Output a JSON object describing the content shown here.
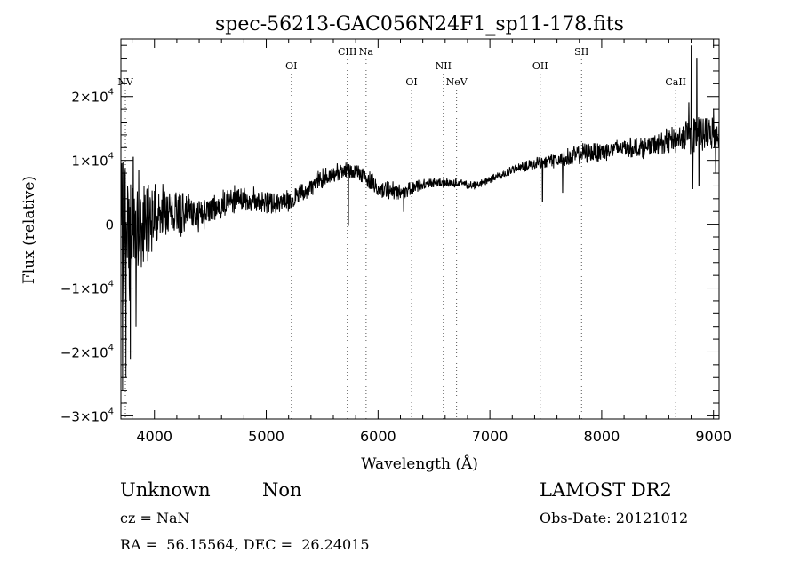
{
  "chart_data": {
    "type": "line",
    "title": "spec-56213-GAC056N24F1_sp11-178.fits",
    "xlabel": "Wavelength (Å)",
    "ylabel": "Flux (relative)",
    "xlim": [
      3700,
      9050
    ],
    "ylim": [
      -30500,
      29000
    ],
    "x_ticks": [
      {
        "value": 4000,
        "label": "4000"
      },
      {
        "value": 5000,
        "label": "5000"
      },
      {
        "value": 6000,
        "label": "6000"
      },
      {
        "value": 7000,
        "label": "7000"
      },
      {
        "value": 8000,
        "label": "8000"
      },
      {
        "value": 9000,
        "label": "9000"
      }
    ],
    "y_ticks": [
      {
        "value": -30000,
        "mant": "−3×10",
        "exp": "4"
      },
      {
        "value": -20000,
        "mant": "−2×10",
        "exp": "4"
      },
      {
        "value": -10000,
        "mant": "−1×10",
        "exp": "4"
      },
      {
        "value": 0,
        "mant": "0",
        "exp": ""
      },
      {
        "value": 10000,
        "mant": "1×10",
        "exp": "4"
      },
      {
        "value": 20000,
        "mant": "2×10",
        "exp": "4"
      }
    ],
    "lines": [
      {
        "label": "NV",
        "x": 3740,
        "level": 3
      },
      {
        "label": "OI",
        "x": 5225,
        "level": 2
      },
      {
        "label": "CIII",
        "x": 5725,
        "level": 1
      },
      {
        "label": "Na",
        "x": 5893,
        "level": 1
      },
      {
        "label": "OI",
        "x": 6300,
        "level": 3
      },
      {
        "label": "NII",
        "x": 6584,
        "level": 2
      },
      {
        "label": "NeV",
        "x": 6702,
        "level": 3
      },
      {
        "label": "OII",
        "x": 7450,
        "level": 2
      },
      {
        "label": "SII",
        "x": 7820,
        "level": 1
      },
      {
        "label": "CaII",
        "x": 8662,
        "level": 3
      }
    ],
    "series": [
      {
        "anchors": [
          [
            3700,
            1000
          ],
          [
            3750,
            -3000
          ],
          [
            3800,
            -1500
          ],
          [
            3900,
            500
          ],
          [
            4000,
            2000
          ],
          [
            4200,
            1500
          ],
          [
            4400,
            1500
          ],
          [
            4550,
            2500
          ],
          [
            4700,
            4000
          ],
          [
            4900,
            4000
          ],
          [
            5100,
            3000
          ],
          [
            5250,
            4000
          ],
          [
            5400,
            6000
          ],
          [
            5550,
            7500
          ],
          [
            5700,
            8500
          ],
          [
            5850,
            8000
          ],
          [
            6000,
            5500
          ],
          [
            6200,
            5000
          ],
          [
            6350,
            6000
          ],
          [
            6500,
            6500
          ],
          [
            6700,
            6500
          ],
          [
            6850,
            6000
          ],
          [
            7000,
            7000
          ],
          [
            7200,
            8500
          ],
          [
            7400,
            9500
          ],
          [
            7600,
            10000
          ],
          [
            7800,
            11000
          ],
          [
            8000,
            11500
          ],
          [
            8200,
            12000
          ],
          [
            8400,
            12000
          ],
          [
            8600,
            13000
          ],
          [
            8800,
            14000
          ],
          [
            9000,
            14000
          ],
          [
            9050,
            14000
          ]
        ],
        "noise": [
          [
            3700,
            12000
          ],
          [
            3800,
            10000
          ],
          [
            3900,
            6000
          ],
          [
            4000,
            4500
          ],
          [
            4200,
            3000
          ],
          [
            4500,
            2000
          ],
          [
            4700,
            1800
          ],
          [
            5000,
            1500
          ],
          [
            5400,
            1400
          ],
          [
            5800,
            1200
          ],
          [
            6100,
            1300
          ],
          [
            6500,
            700
          ],
          [
            6900,
            500
          ],
          [
            7200,
            600
          ],
          [
            7600,
            1000
          ],
          [
            7900,
            1500
          ],
          [
            8200,
            1300
          ],
          [
            8500,
            1500
          ],
          [
            8700,
            2000
          ],
          [
            8800,
            3000
          ],
          [
            9000,
            2500
          ],
          [
            9050,
            2500
          ]
        ],
        "features": [
          [
            3715,
            -26000
          ],
          [
            3745,
            -24000
          ],
          [
            3760,
            6000
          ],
          [
            3785,
            -21000
          ],
          [
            3810,
            10500
          ],
          [
            3835,
            -16000
          ],
          [
            3860,
            8500
          ],
          [
            5735,
            -200
          ],
          [
            6230,
            2000
          ],
          [
            7470,
            3500
          ],
          [
            7650,
            5000
          ],
          [
            8780,
            19000
          ],
          [
            8800,
            28000
          ],
          [
            8815,
            5500
          ],
          [
            8840,
            16000
          ],
          [
            8850,
            26000
          ],
          [
            8870,
            6000
          ],
          [
            8980,
            13000
          ],
          [
            9000,
            18000
          ],
          [
            9020,
            8000
          ]
        ]
      }
    ]
  },
  "footer": {
    "object_class": "Unknown",
    "subclass": "Non",
    "survey": "LAMOST DR2",
    "cz": "cz = NaN",
    "obs_date": "Obs-Date: 20121012",
    "coords": "RA =  56.15564, DEC =  26.24015"
  }
}
